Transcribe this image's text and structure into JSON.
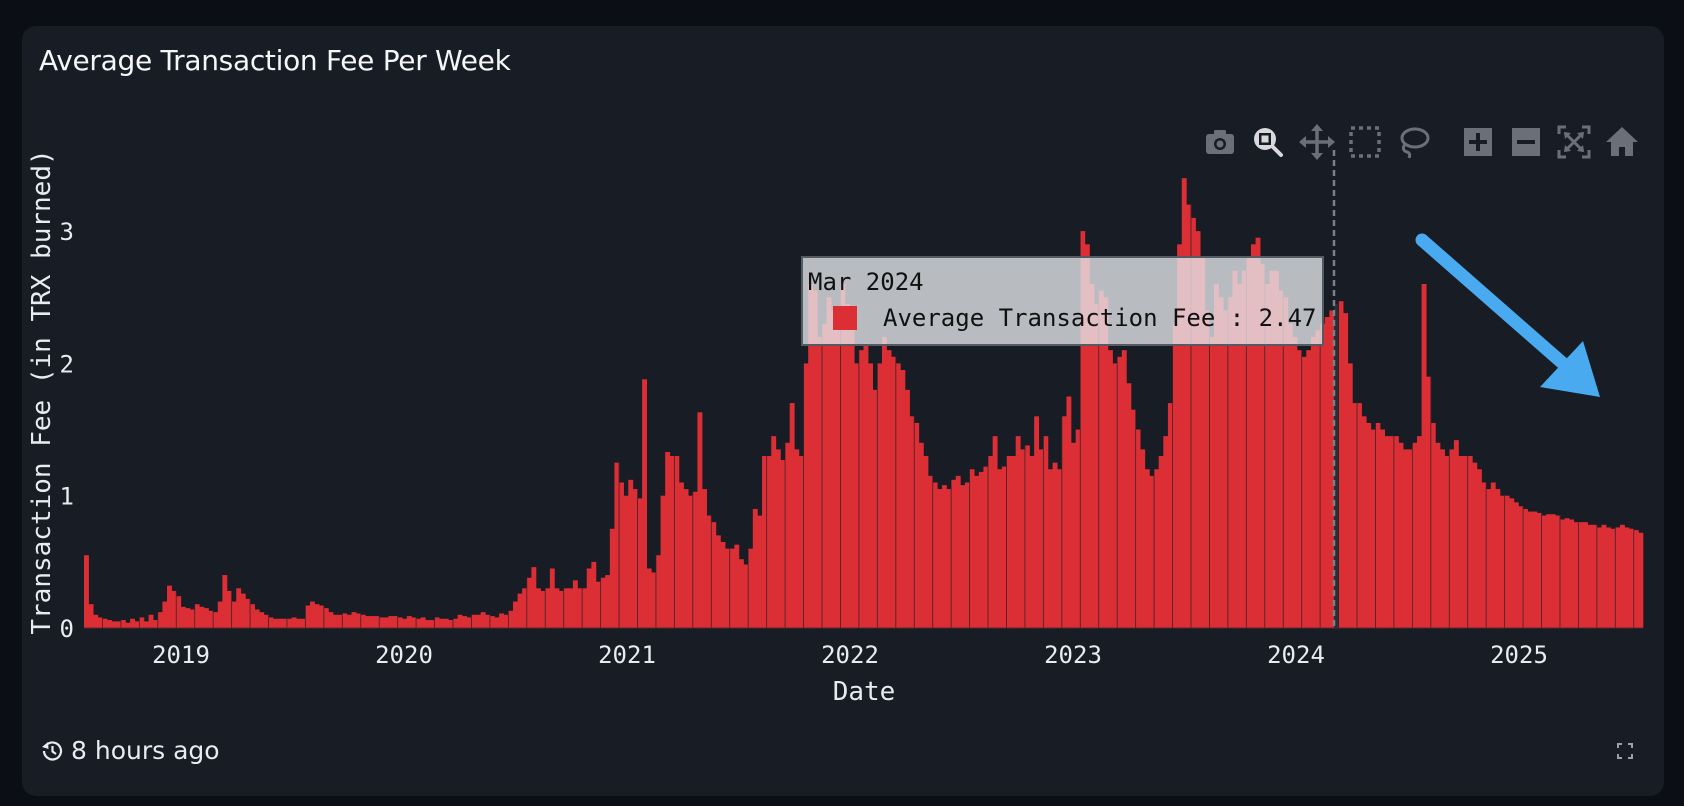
{
  "card": {
    "title": "Average Transaction Fee Per Week",
    "footer": {
      "updated_icon": "history-icon",
      "updated_text": "8 hours ago",
      "expand_icon": "expand-icon"
    }
  },
  "toolbar": {
    "buttons": [
      {
        "name": "download-plot-png",
        "icon": "camera-icon",
        "active": false
      },
      {
        "name": "zoom",
        "icon": "zoom-icon",
        "active": true
      },
      {
        "name": "pan",
        "icon": "pan-icon",
        "active": false
      },
      {
        "name": "box-select",
        "icon": "box-select-icon",
        "active": false
      },
      {
        "name": "lasso-select",
        "icon": "lasso-icon",
        "active": false
      },
      {
        "name": "zoom-in",
        "icon": "zoom-in-icon",
        "active": false
      },
      {
        "name": "zoom-out",
        "icon": "zoom-out-icon",
        "active": false
      },
      {
        "name": "autoscale",
        "icon": "autoscale-icon",
        "active": false
      },
      {
        "name": "reset-axes",
        "icon": "home-icon",
        "active": false
      }
    ]
  },
  "tooltip": {
    "date": "Mar 2024",
    "series_label": "Average Transaction Fee",
    "separator": " : ",
    "value": "2.47"
  },
  "colors": {
    "bar": "#dc2f35",
    "card_bg": "#171c25",
    "page_bg": "#0b0f15",
    "annotation_arrow": "#4aaaf0",
    "axis_text": "#e8ebef"
  },
  "chart_data": {
    "type": "bar",
    "title": "Average Transaction Fee Per Week",
    "xlabel": "Date",
    "ylabel": "Transaction Fee (in TRX burned)",
    "ylim": [
      0,
      3.5
    ],
    "y_ticks": [
      "0",
      "1",
      "2",
      "3"
    ],
    "x_ticks": [
      "2019",
      "2020",
      "2021",
      "2022",
      "2023",
      "2024",
      "2025"
    ],
    "grid": false,
    "legend": "none",
    "x_start": "2018-07",
    "resolution": "monthly (approx., from weekly bars)",
    "categories": [
      "2018-07",
      "2018-08",
      "2018-09",
      "2018-10",
      "2018-11",
      "2018-12",
      "2019-01",
      "2019-02",
      "2019-03",
      "2019-04",
      "2019-05",
      "2019-06",
      "2019-07",
      "2019-08",
      "2019-09",
      "2019-10",
      "2019-11",
      "2019-12",
      "2020-01",
      "2020-02",
      "2020-03",
      "2020-04",
      "2020-05",
      "2020-06",
      "2020-07",
      "2020-08",
      "2020-09",
      "2020-10",
      "2020-11",
      "2020-12",
      "2021-01",
      "2021-02",
      "2021-03",
      "2021-04",
      "2021-05",
      "2021-06",
      "2021-07",
      "2021-08",
      "2021-09",
      "2021-10",
      "2021-11",
      "2021-12",
      "2022-01",
      "2022-02",
      "2022-03",
      "2022-04",
      "2022-05",
      "2022-06",
      "2022-07",
      "2022-08",
      "2022-09",
      "2022-10",
      "2022-11",
      "2022-12",
      "2023-01",
      "2023-02",
      "2023-03",
      "2023-04",
      "2023-05",
      "2023-06",
      "2023-07",
      "2023-08",
      "2023-09",
      "2023-10",
      "2023-11",
      "2023-12",
      "2024-01",
      "2024-02",
      "2024-03",
      "2024-04",
      "2024-05",
      "2024-06",
      "2024-07",
      "2024-08",
      "2024-09",
      "2024-10",
      "2024-11",
      "2024-12",
      "2025-01",
      "2025-02",
      "2025-03",
      "2025-04",
      "2025-05",
      "2025-06",
      "2025-07"
    ],
    "series": [
      {
        "name": "Average Transaction Fee",
        "weekly_shape": [
          [
            0.55,
            0.18,
            0.1,
            0.08
          ],
          [
            0.07,
            0.06,
            0.05,
            0.05
          ],
          [
            0.06,
            0.04,
            0.07,
            0.05
          ],
          [
            0.08,
            0.05,
            0.1,
            0.06
          ],
          [
            0.12,
            0.2,
            0.32,
            0.28
          ],
          [
            0.24,
            0.16,
            0.15,
            0.14
          ],
          [
            0.18,
            0.16,
            0.15,
            0.13
          ],
          [
            0.12,
            0.2,
            0.4,
            0.28
          ],
          [
            0.2,
            0.3,
            0.26,
            0.22
          ],
          [
            0.18,
            0.14,
            0.12,
            0.1
          ],
          [
            0.08,
            0.07,
            0.07,
            0.07
          ],
          [
            0.07,
            0.08,
            0.07,
            0.07
          ],
          [
            0.17,
            0.2,
            0.18,
            0.17
          ],
          [
            0.15,
            0.12,
            0.1,
            0.1
          ],
          [
            0.11,
            0.1,
            0.12,
            0.11
          ],
          [
            0.1,
            0.09,
            0.09,
            0.09
          ],
          [
            0.08,
            0.08,
            0.09,
            0.09
          ],
          [
            0.08,
            0.07,
            0.09,
            0.08
          ],
          [
            0.07,
            0.08,
            0.06,
            0.06
          ],
          [
            0.08,
            0.07,
            0.07,
            0.06
          ],
          [
            0.07,
            0.1,
            0.09,
            0.08
          ],
          [
            0.1,
            0.1,
            0.12,
            0.1
          ],
          [
            0.09,
            0.08,
            0.11,
            0.1
          ],
          [
            0.13,
            0.2,
            0.26,
            0.3
          ],
          [
            0.38,
            0.46,
            0.3,
            0.28
          ],
          [
            0.3,
            0.45,
            0.3,
            0.28
          ],
          [
            0.3,
            0.3,
            0.36,
            0.3
          ],
          [
            0.3,
            0.45,
            0.5,
            0.35
          ],
          [
            0.38,
            0.4,
            0.75,
            1.25
          ],
          [
            1.1,
            1.0,
            1.12,
            1.05
          ],
          [
            0.98,
            1.88,
            0.45,
            0.42
          ],
          [
            0.55,
            1.0,
            1.33,
            1.3
          ],
          [
            1.3,
            1.1,
            1.05,
            1.0
          ],
          [
            1.03,
            1.63,
            1.05,
            0.85
          ],
          [
            0.8,
            0.7,
            0.65,
            0.6
          ],
          [
            0.6,
            0.63,
            0.52,
            0.48
          ],
          [
            0.6,
            0.9,
            0.85,
            1.3
          ],
          [
            1.3,
            1.45,
            1.35,
            1.27
          ],
          [
            1.4,
            1.7,
            1.35,
            1.3
          ],
          [
            2.0,
            2.6,
            2.55,
            2.2
          ],
          [
            2.3,
            2.5,
            2.4,
            2.35
          ],
          [
            2.6,
            2.45,
            2.3,
            2.0
          ],
          [
            2.1,
            2.15,
            2.0,
            1.8
          ],
          [
            2.0,
            2.2,
            2.1,
            2.05
          ],
          [
            2.0,
            1.95,
            1.8,
            1.6
          ],
          [
            1.55,
            1.4,
            1.3,
            1.15
          ],
          [
            1.1,
            1.05,
            1.08,
            1.05
          ],
          [
            1.12,
            1.15,
            1.08,
            1.1
          ],
          [
            1.2,
            1.15,
            1.18,
            1.22
          ],
          [
            1.3,
            1.45,
            1.2,
            1.22
          ],
          [
            1.3,
            1.3,
            1.45,
            1.35
          ],
          [
            1.38,
            1.3,
            1.6,
            1.35
          ],
          [
            1.45,
            1.2,
            1.25,
            1.2
          ],
          [
            1.6,
            1.75,
            1.4,
            1.5
          ],
          [
            3.0,
            2.9,
            2.6,
            2.45
          ],
          [
            2.55,
            2.5,
            2.1,
            2.0
          ],
          [
            2.05,
            2.1,
            1.85,
            1.65
          ],
          [
            1.5,
            1.35,
            1.2,
            1.15
          ],
          [
            1.2,
            1.3,
            1.45,
            1.7
          ],
          [
            2.3,
            2.9,
            3.4,
            3.2
          ],
          [
            3.1,
            3.0,
            2.8,
            2.4
          ],
          [
            2.2,
            2.6,
            2.5,
            2.4
          ],
          [
            2.5,
            2.7,
            2.6,
            2.7
          ],
          [
            2.8,
            2.9,
            2.95,
            2.75
          ],
          [
            2.6,
            2.7,
            2.7,
            2.55
          ],
          [
            2.5,
            2.3,
            2.2,
            2.1
          ],
          [
            2.05,
            2.1,
            2.2,
            2.25
          ],
          [
            2.3,
            2.35,
            2.4,
            2.45
          ],
          [
            2.47,
            2.38,
            2.0,
            1.7
          ],
          [
            1.7,
            1.6,
            1.55,
            1.5
          ],
          [
            1.55,
            1.5,
            1.45,
            1.45
          ],
          [
            1.45,
            1.4,
            1.35,
            1.35
          ],
          [
            1.4,
            1.45,
            2.6,
            1.9
          ],
          [
            1.55,
            1.4,
            1.35,
            1.3
          ],
          [
            1.35,
            1.42,
            1.3,
            1.3
          ],
          [
            1.3,
            1.25,
            1.2,
            1.1
          ],
          [
            1.05,
            1.1,
            1.05,
            1.0
          ],
          [
            1.0,
            0.98,
            0.95,
            0.92
          ],
          [
            0.9,
            0.88,
            0.88,
            0.87
          ],
          [
            0.85,
            0.86,
            0.86,
            0.85
          ],
          [
            0.82,
            0.83,
            0.82,
            0.8
          ],
          [
            0.8,
            0.8,
            0.78,
            0.78
          ],
          [
            0.76,
            0.78,
            0.76,
            0.75
          ],
          [
            0.76,
            0.78,
            0.76,
            0.75
          ],
          [
            0.74,
            0.72
          ]
        ]
      }
    ],
    "hover": {
      "x": "Mar 2024",
      "value": 2.47
    },
    "annotation": {
      "type": "arrow",
      "color": "#4aaaf0",
      "direction": "down-right",
      "meaning": "declining trend"
    }
  }
}
